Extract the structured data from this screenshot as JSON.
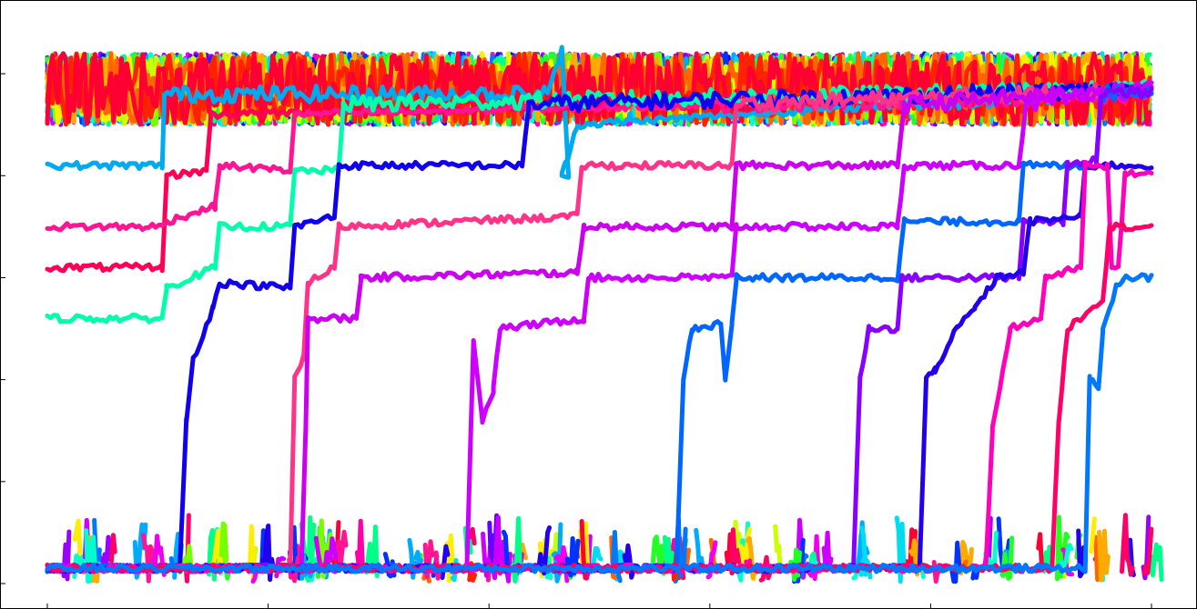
{
  "chart_data": {
    "type": "line",
    "title": "",
    "xlabel": "",
    "ylabel": "",
    "xlim": [
      0,
      500
    ],
    "ylim": [
      0,
      5.5
    ],
    "grid": false,
    "legend": "none",
    "x_ticks": [
      0,
      100,
      200,
      300,
      400,
      500
    ],
    "y_ticks": [
      0,
      1,
      2,
      3,
      4,
      5
    ],
    "tick_labels_visible": false,
    "bands": {
      "top_level": 4.85,
      "top_spread": 0.35,
      "bottom_level": 0.15,
      "bottom_spread": 0.45
    },
    "palette": [
      "#ff0066",
      "#ff1493",
      "#ff00aa",
      "#ee00ee",
      "#cc00ff",
      "#9900ff",
      "#6600ff",
      "#2200ee",
      "#0033ff",
      "#0077ff",
      "#00aaff",
      "#00ddee",
      "#00ffcc",
      "#00ff88",
      "#22ff22",
      "#77ff00",
      "#ccff00",
      "#ffee00",
      "#ffaa00",
      "#ff6600",
      "#ff2200",
      "#ff0033"
    ],
    "series": [
      {
        "color": "#00aaee",
        "points": [
          [
            0,
            4.1
          ],
          [
            52,
            4.1
          ],
          [
            53,
            4.8
          ],
          [
            225,
            4.8
          ],
          [
            233,
            5.2
          ],
          [
            236,
            4.0
          ],
          [
            233,
            4.0
          ],
          [
            240,
            4.5
          ],
          [
            500,
            4.85
          ]
        ]
      },
      {
        "color": "#ff0055",
        "points": [
          [
            0,
            3.1
          ],
          [
            52,
            3.1
          ],
          [
            54,
            4.0
          ],
          [
            72,
            4.05
          ],
          [
            74,
            4.6
          ],
          [
            500,
            4.8
          ]
        ]
      },
      {
        "color": "#ff1493",
        "points": [
          [
            0,
            3.5
          ],
          [
            52,
            3.5
          ],
          [
            54,
            3.55
          ],
          [
            76,
            3.7
          ],
          [
            78,
            4.1
          ],
          [
            110,
            4.05
          ],
          [
            112,
            4.6
          ],
          [
            500,
            4.8
          ]
        ]
      },
      {
        "color": "#00ffaa",
        "points": [
          [
            0,
            2.6
          ],
          [
            52,
            2.6
          ],
          [
            54,
            2.9
          ],
          [
            76,
            3.1
          ],
          [
            78,
            3.5
          ],
          [
            110,
            3.5
          ],
          [
            112,
            4.05
          ],
          [
            132,
            4.05
          ],
          [
            134,
            4.7
          ],
          [
            500,
            4.85
          ]
        ]
      },
      {
        "color": "#1100ee",
        "points": [
          [
            0,
            0.15
          ],
          [
            60,
            0.15
          ],
          [
            63,
            1.6
          ],
          [
            66,
            2.2
          ],
          [
            75,
            2.7
          ],
          [
            78,
            2.95
          ],
          [
            110,
            2.9
          ],
          [
            112,
            3.5
          ],
          [
            130,
            3.6
          ],
          [
            132,
            4.1
          ],
          [
            215,
            4.1
          ],
          [
            218,
            4.7
          ],
          [
            500,
            4.85
          ]
        ]
      },
      {
        "color": "#ff3388",
        "points": [
          [
            0,
            0.15
          ],
          [
            110,
            0.15
          ],
          [
            112,
            2.0
          ],
          [
            116,
            2.2
          ],
          [
            118,
            2.95
          ],
          [
            130,
            3.1
          ],
          [
            132,
            3.5
          ],
          [
            240,
            3.6
          ],
          [
            242,
            4.1
          ],
          [
            310,
            4.1
          ],
          [
            312,
            4.7
          ],
          [
            500,
            4.85
          ]
        ]
      },
      {
        "color": "#cc00ee",
        "points": [
          [
            0,
            0.15
          ],
          [
            115,
            0.15
          ],
          [
            117,
            1.5
          ],
          [
            118,
            2.6
          ],
          [
            140,
            2.6
          ],
          [
            142,
            3.0
          ],
          [
            240,
            3.05
          ],
          [
            243,
            3.5
          ],
          [
            310,
            3.5
          ],
          [
            312,
            4.1
          ],
          [
            385,
            4.1
          ],
          [
            388,
            4.7
          ],
          [
            500,
            4.85
          ]
        ]
      },
      {
        "color": "#cc00ff",
        "points": [
          [
            0,
            0.15
          ],
          [
            190,
            0.15
          ],
          [
            193,
            2.4
          ],
          [
            197,
            1.6
          ],
          [
            202,
            1.9
          ],
          [
            205,
            2.5
          ],
          [
            243,
            2.6
          ],
          [
            245,
            3.0
          ],
          [
            310,
            3.0
          ],
          [
            312,
            3.5
          ],
          [
            385,
            3.5
          ],
          [
            388,
            4.1
          ],
          [
            440,
            4.1
          ],
          [
            443,
            4.7
          ],
          [
            500,
            4.85
          ]
        ]
      },
      {
        "color": "#0066ff",
        "points": [
          [
            0,
            0.15
          ],
          [
            285,
            0.15
          ],
          [
            288,
            2.0
          ],
          [
            292,
            2.5
          ],
          [
            305,
            2.55
          ],
          [
            307,
            2.0
          ],
          [
            310,
            2.55
          ],
          [
            312,
            3.0
          ],
          [
            385,
            3.0
          ],
          [
            388,
            3.55
          ],
          [
            440,
            3.55
          ],
          [
            442,
            4.1
          ],
          [
            475,
            4.1
          ],
          [
            477,
            4.8
          ],
          [
            500,
            4.85
          ]
        ]
      },
      {
        "color": "#8800ff",
        "points": [
          [
            0,
            0.15
          ],
          [
            365,
            0.15
          ],
          [
            368,
            2.0
          ],
          [
            372,
            2.5
          ],
          [
            385,
            2.5
          ],
          [
            387,
            3.0
          ],
          [
            440,
            3.0
          ],
          [
            442,
            3.55
          ],
          [
            460,
            3.55
          ],
          [
            462,
            4.1
          ],
          [
            475,
            4.15
          ],
          [
            477,
            4.8
          ],
          [
            500,
            4.85
          ]
        ]
      },
      {
        "color": "#2200ee",
        "points": [
          [
            0,
            0.15
          ],
          [
            395,
            0.15
          ],
          [
            398,
            2.0
          ],
          [
            402,
            2.1
          ],
          [
            412,
            2.5
          ],
          [
            420,
            2.7
          ],
          [
            430,
            3.0
          ],
          [
            442,
            3.05
          ],
          [
            445,
            3.55
          ],
          [
            468,
            3.6
          ],
          [
            470,
            4.1
          ],
          [
            500,
            4.1
          ]
        ]
      },
      {
        "color": "#ff00bb",
        "points": [
          [
            0,
            0.15
          ],
          [
            425,
            0.15
          ],
          [
            428,
            1.5
          ],
          [
            436,
            2.5
          ],
          [
            450,
            2.6
          ],
          [
            452,
            3.0
          ],
          [
            468,
            3.1
          ],
          [
            470,
            4.1
          ],
          [
            480,
            4.1
          ],
          [
            482,
            3.1
          ],
          [
            485,
            3.1
          ],
          [
            488,
            4.0
          ],
          [
            500,
            4.05
          ]
        ]
      },
      {
        "color": "#ff0066",
        "points": [
          [
            0,
            0.15
          ],
          [
            455,
            0.15
          ],
          [
            458,
            1.6
          ],
          [
            462,
            2.5
          ],
          [
            478,
            2.8
          ],
          [
            481,
            3.5
          ],
          [
            500,
            3.5
          ]
        ]
      },
      {
        "color": "#0077ff",
        "points": [
          [
            0,
            0.15
          ],
          [
            470,
            0.15
          ],
          [
            472,
            2.0
          ],
          [
            476,
            1.9
          ],
          [
            478,
            2.5
          ],
          [
            484,
            2.9
          ],
          [
            487,
            3.0
          ],
          [
            500,
            3.0
          ]
        ]
      }
    ]
  }
}
